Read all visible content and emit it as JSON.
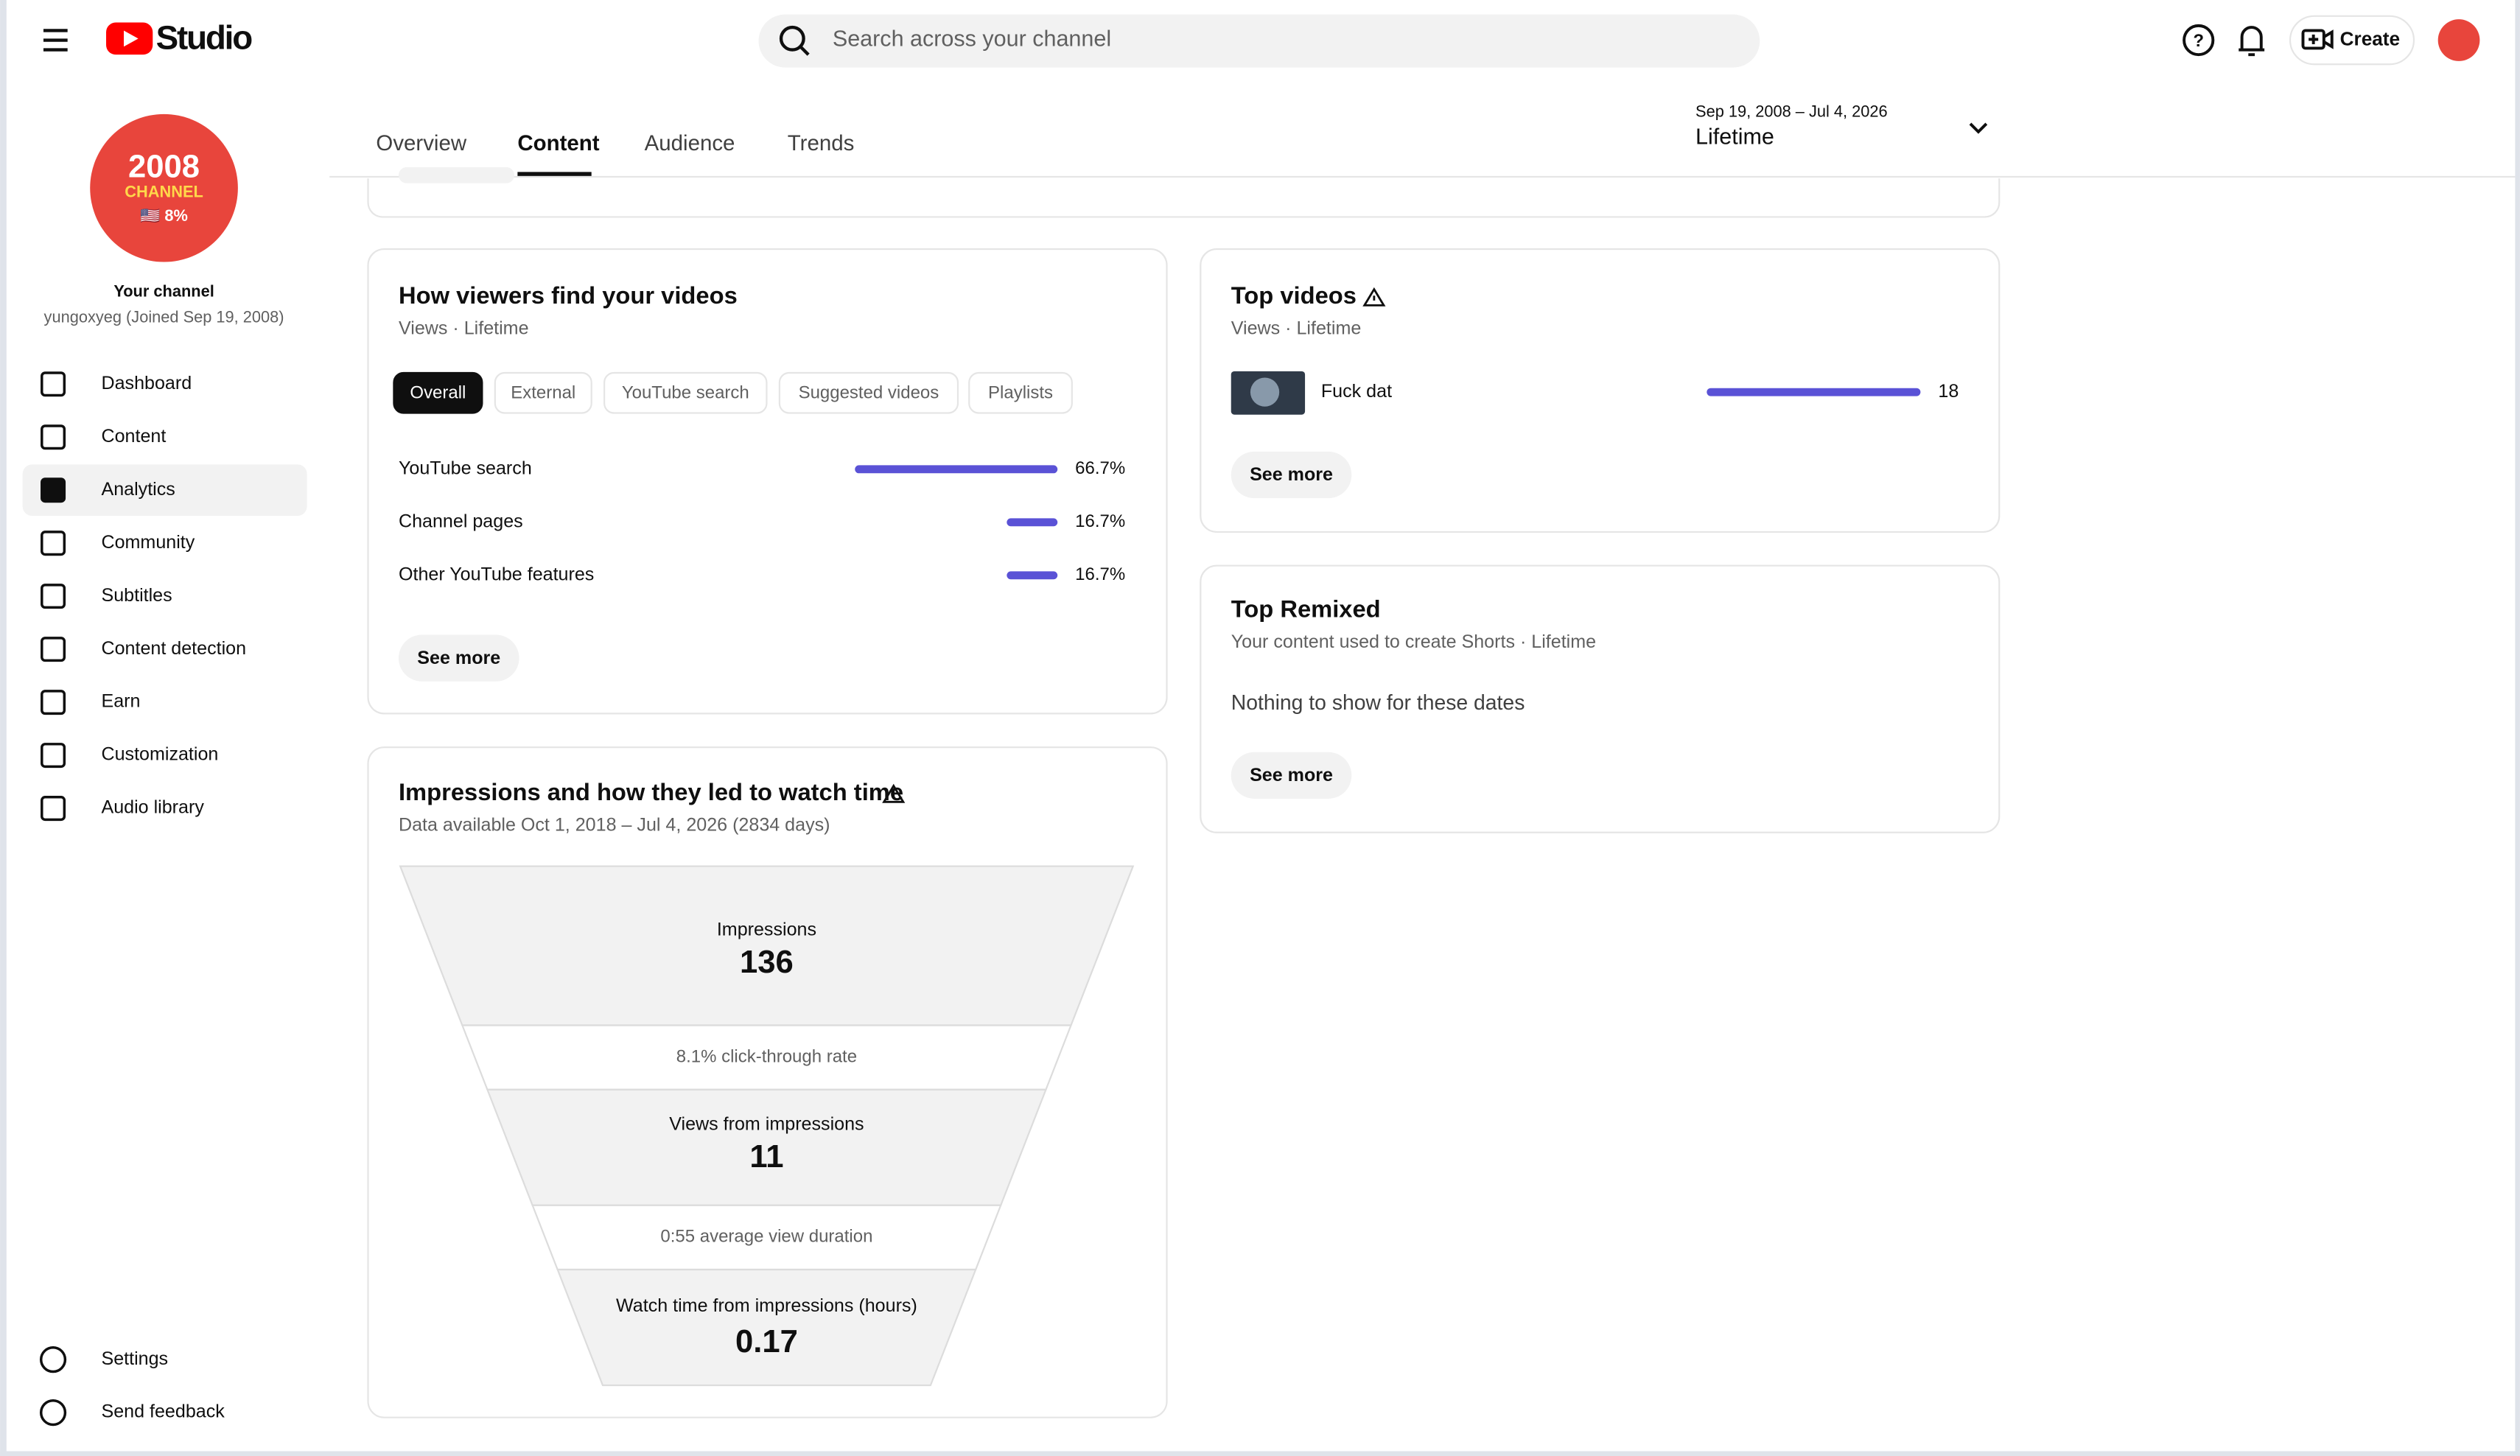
{
  "header": {
    "logo_text": "Studio",
    "search_placeholder": "Search across your channel",
    "create_label": "Create"
  },
  "sidebar": {
    "avatar_lines": [
      "2008",
      "CHANNEL",
      "🇺🇸 8%"
    ],
    "channel_title": "Your channel",
    "channel_subtitle": "yungoxyeg (Joined Sep 19, 2008)",
    "nav": [
      {
        "label": "Dashboard"
      },
      {
        "label": "Content"
      },
      {
        "label": "Analytics",
        "active": true
      },
      {
        "label": "Community"
      },
      {
        "label": "Subtitles"
      },
      {
        "label": "Content detection"
      },
      {
        "label": "Earn"
      },
      {
        "label": "Customization"
      },
      {
        "label": "Audio library"
      }
    ],
    "footer_nav": [
      {
        "label": "Settings"
      },
      {
        "label": "Send feedback"
      }
    ]
  },
  "tabs": [
    {
      "label": "Overview"
    },
    {
      "label": "Content",
      "active": true
    },
    {
      "label": "Audience"
    },
    {
      "label": "Trends"
    }
  ],
  "date_range": {
    "range": "Sep 19, 2008 – Jul 4, 2026",
    "label": "Lifetime"
  },
  "traffic": {
    "title": "How viewers find your videos",
    "subtitle": "Views · Lifetime",
    "chips": [
      {
        "label": "Overall",
        "active": true
      },
      {
        "label": "External"
      },
      {
        "label": "YouTube search"
      },
      {
        "label": "Suggested videos"
      },
      {
        "label": "Playlists"
      }
    ],
    "rows": [
      {
        "label": "YouTube search",
        "value": 66.7,
        "value_label": "66.7%"
      },
      {
        "label": "Channel pages",
        "value": 16.7,
        "value_label": "16.7%"
      },
      {
        "label": "Other YouTube features",
        "value": 16.7,
        "value_label": "16.7%"
      }
    ],
    "see_more": "See more"
  },
  "funnel": {
    "title": "Impressions and how they led to watch time",
    "subtitle": "Data available Oct 1, 2018 – Jul 4, 2026 (2834 days)",
    "impressions": {
      "label": "Impressions",
      "value": 136
    },
    "ctr": "8.1% click-through rate",
    "views": {
      "label": "Views from impressions",
      "value": 11
    },
    "avd": "0:55 average view duration",
    "watch": {
      "label": "Watch time from impressions (hours)",
      "value": 0.17
    }
  },
  "top_videos": {
    "title": "Top videos",
    "subtitle": "Views · Lifetime",
    "videos": [
      {
        "title": "Fuck dat",
        "views": 18
      }
    ],
    "see_more": "See more"
  },
  "top_remixed": {
    "title": "Top Remixed",
    "subtitle": "Your content used to create Shorts · Lifetime",
    "empty": "Nothing to show for these dates",
    "see_more": "See more"
  }
}
